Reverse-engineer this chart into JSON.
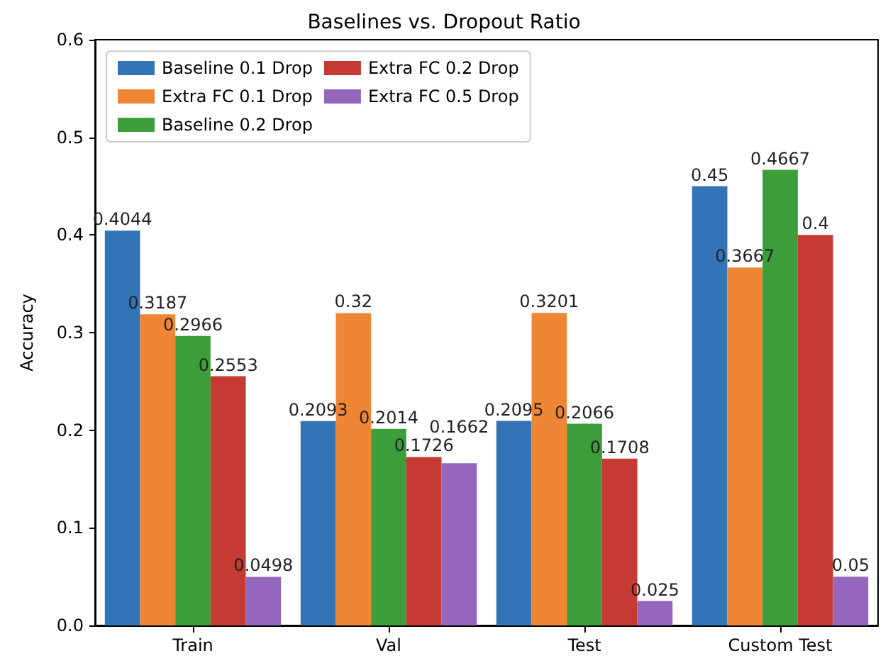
{
  "chart_data": {
    "type": "bar",
    "title": "Baselines vs. Dropout Ratio",
    "ylabel": "Accuracy",
    "categories": [
      "Train",
      "Val",
      "Test",
      "Custom Test"
    ],
    "series": [
      {
        "name": "Baseline 0.1 Drop",
        "color": "#3274b5",
        "values": [
          0.4044,
          0.2093,
          0.2095,
          0.45
        ]
      },
      {
        "name": "Extra FC 0.1 Drop",
        "color": "#ef8636",
        "values": [
          0.3187,
          0.32,
          0.3201,
          0.3667
        ]
      },
      {
        "name": "Baseline 0.2 Drop",
        "color": "#3b9e3b",
        "values": [
          0.2966,
          0.2014,
          0.2066,
          0.4667
        ]
      },
      {
        "name": "Extra FC 0.2 Drop",
        "color": "#c53a32",
        "values": [
          0.2553,
          0.1726,
          0.1708,
          0.4
        ]
      },
      {
        "name": "Extra FC 0.5 Drop",
        "color": "#9467bd",
        "values": [
          0.0498,
          0.1662,
          0.025,
          0.05
        ]
      }
    ],
    "ylim": [
      0,
      0.6
    ],
    "yticks": [
      {
        "value": 0,
        "label": "0.0"
      },
      {
        "value": 0.1,
        "label": "0.1"
      },
      {
        "value": 0.2,
        "label": "0.2"
      },
      {
        "value": 0.3,
        "label": "0.3"
      },
      {
        "value": 0.4,
        "label": "0.4"
      },
      {
        "value": 0.5,
        "label": "0.5"
      },
      {
        "value": 0.6,
        "label": "0.6"
      }
    ],
    "data_labels": true,
    "legend": "top left",
    "grid": false
  }
}
